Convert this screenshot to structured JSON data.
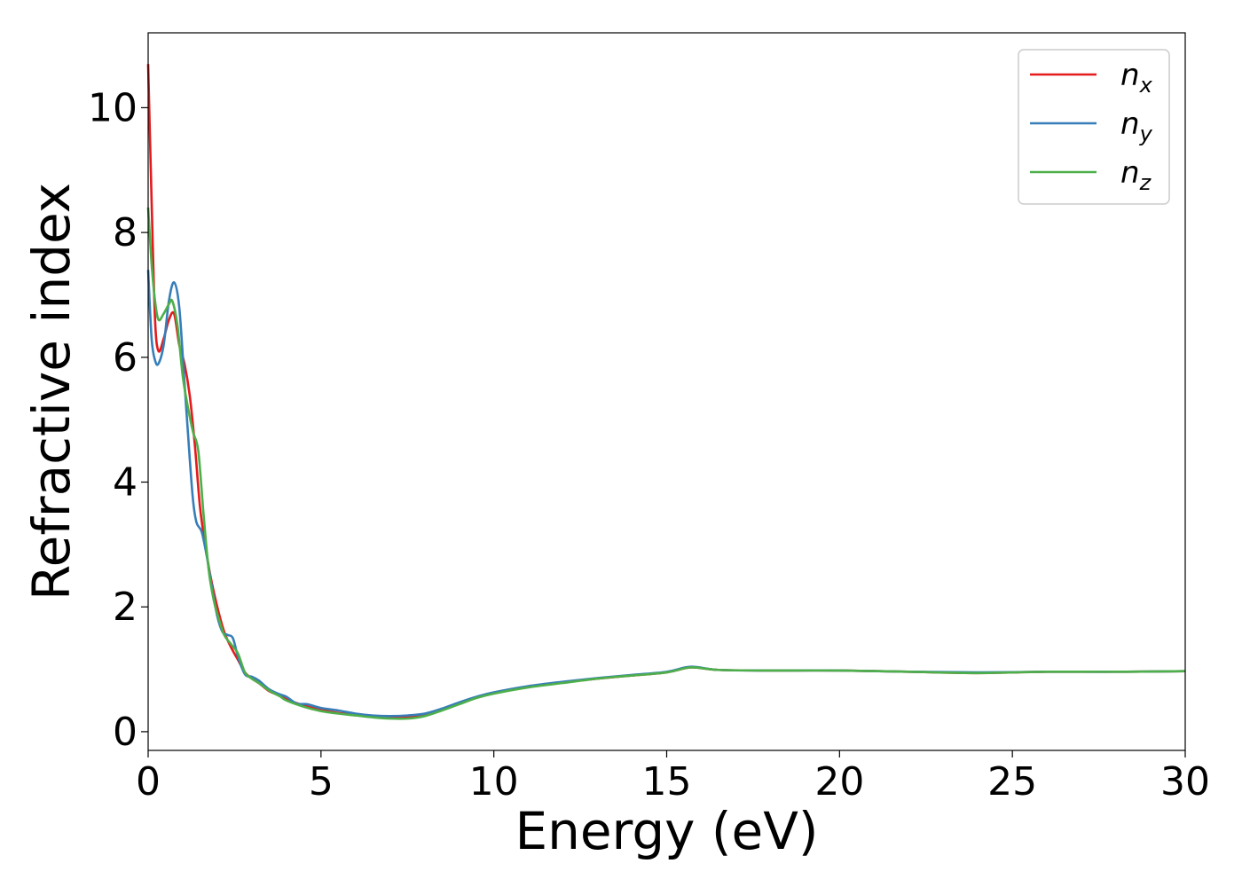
{
  "chart_data": {
    "type": "line",
    "xlabel": "Energy (eV)",
    "ylabel": "Refractive index",
    "xlim": [
      0,
      30
    ],
    "ylim": [
      -0.3,
      11.2
    ],
    "xticks": [
      0,
      5,
      10,
      15,
      20,
      25,
      30
    ],
    "yticks": [
      0,
      2,
      4,
      6,
      8,
      10
    ],
    "grid": false,
    "legend_position": "top-right",
    "series": [
      {
        "name": "n",
        "subscript": "x",
        "color": "#e41a1c",
        "points": [
          [
            0,
            10.7
          ],
          [
            0.1,
            8.5
          ],
          [
            0.2,
            6.6
          ],
          [
            0.3,
            6.1
          ],
          [
            0.45,
            6.3
          ],
          [
            0.6,
            6.6
          ],
          [
            0.75,
            6.7
          ],
          [
            0.9,
            6.2
          ],
          [
            1.05,
            5.9
          ],
          [
            1.2,
            5.4
          ],
          [
            1.35,
            4.6
          ],
          [
            1.5,
            3.6
          ],
          [
            1.65,
            3.0
          ],
          [
            1.8,
            2.5
          ],
          [
            2.0,
            2.0
          ],
          [
            2.2,
            1.6
          ],
          [
            2.4,
            1.35
          ],
          [
            2.6,
            1.15
          ],
          [
            2.8,
            0.95
          ],
          [
            3.0,
            0.85
          ],
          [
            3.2,
            0.78
          ],
          [
            3.5,
            0.65
          ],
          [
            3.8,
            0.58
          ],
          [
            4.0,
            0.52
          ],
          [
            4.5,
            0.42
          ],
          [
            5.0,
            0.35
          ],
          [
            5.5,
            0.3
          ],
          [
            6.0,
            0.27
          ],
          [
            6.5,
            0.24
          ],
          [
            7.0,
            0.23
          ],
          [
            7.5,
            0.23
          ],
          [
            8.0,
            0.27
          ],
          [
            8.5,
            0.35
          ],
          [
            9.0,
            0.45
          ],
          [
            9.5,
            0.55
          ],
          [
            10.0,
            0.62
          ],
          [
            11.0,
            0.72
          ],
          [
            12.0,
            0.79
          ],
          [
            13.0,
            0.85
          ],
          [
            14.0,
            0.9
          ],
          [
            15.0,
            0.95
          ],
          [
            15.7,
            1.03
          ],
          [
            16.5,
            0.99
          ],
          [
            18.0,
            0.98
          ],
          [
            20.0,
            0.98
          ],
          [
            22.0,
            0.96
          ],
          [
            24.0,
            0.94
          ],
          [
            26.0,
            0.96
          ],
          [
            28.0,
            0.96
          ],
          [
            30.0,
            0.97
          ]
        ]
      },
      {
        "name": "n",
        "subscript": "y",
        "color": "#377eb8",
        "points": [
          [
            0,
            7.4
          ],
          [
            0.1,
            6.3
          ],
          [
            0.2,
            5.95
          ],
          [
            0.3,
            5.9
          ],
          [
            0.45,
            6.2
          ],
          [
            0.6,
            6.9
          ],
          [
            0.75,
            7.2
          ],
          [
            0.9,
            6.8
          ],
          [
            1.05,
            5.6
          ],
          [
            1.2,
            4.4
          ],
          [
            1.3,
            3.7
          ],
          [
            1.4,
            3.35
          ],
          [
            1.55,
            3.2
          ],
          [
            1.7,
            2.8
          ],
          [
            1.85,
            2.3
          ],
          [
            2.0,
            1.85
          ],
          [
            2.15,
            1.6
          ],
          [
            2.3,
            1.55
          ],
          [
            2.45,
            1.5
          ],
          [
            2.6,
            1.2
          ],
          [
            2.8,
            0.92
          ],
          [
            3.0,
            0.88
          ],
          [
            3.2,
            0.82
          ],
          [
            3.5,
            0.68
          ],
          [
            3.8,
            0.6
          ],
          [
            4.0,
            0.56
          ],
          [
            4.3,
            0.45
          ],
          [
            4.6,
            0.44
          ],
          [
            5.0,
            0.38
          ],
          [
            5.5,
            0.34
          ],
          [
            6.0,
            0.29
          ],
          [
            6.5,
            0.26
          ],
          [
            7.0,
            0.25
          ],
          [
            7.5,
            0.26
          ],
          [
            8.0,
            0.29
          ],
          [
            8.5,
            0.37
          ],
          [
            9.0,
            0.47
          ],
          [
            9.5,
            0.56
          ],
          [
            10.0,
            0.63
          ],
          [
            11.0,
            0.73
          ],
          [
            12.0,
            0.8
          ],
          [
            13.0,
            0.86
          ],
          [
            14.0,
            0.91
          ],
          [
            15.0,
            0.96
          ],
          [
            15.7,
            1.04
          ],
          [
            16.5,
            0.99
          ],
          [
            18.0,
            0.98
          ],
          [
            20.0,
            0.98
          ],
          [
            22.0,
            0.96
          ],
          [
            24.0,
            0.95
          ],
          [
            26.0,
            0.96
          ],
          [
            28.0,
            0.96
          ],
          [
            30.0,
            0.97
          ]
        ]
      },
      {
        "name": "n",
        "subscript": "z",
        "color": "#4daf4a",
        "points": [
          [
            0,
            8.4
          ],
          [
            0.1,
            7.5
          ],
          [
            0.2,
            6.9
          ],
          [
            0.3,
            6.6
          ],
          [
            0.45,
            6.7
          ],
          [
            0.6,
            6.85
          ],
          [
            0.7,
            6.9
          ],
          [
            0.85,
            6.5
          ],
          [
            1.0,
            5.7
          ],
          [
            1.15,
            5.2
          ],
          [
            1.3,
            4.8
          ],
          [
            1.45,
            4.5
          ],
          [
            1.6,
            3.5
          ],
          [
            1.75,
            2.6
          ],
          [
            1.9,
            2.1
          ],
          [
            2.05,
            1.8
          ],
          [
            2.2,
            1.55
          ],
          [
            2.4,
            1.4
          ],
          [
            2.6,
            1.25
          ],
          [
            2.8,
            0.95
          ],
          [
            3.0,
            0.85
          ],
          [
            3.2,
            0.78
          ],
          [
            3.5,
            0.66
          ],
          [
            3.8,
            0.57
          ],
          [
            4.0,
            0.5
          ],
          [
            4.5,
            0.4
          ],
          [
            5.0,
            0.33
          ],
          [
            5.5,
            0.29
          ],
          [
            6.0,
            0.26
          ],
          [
            6.5,
            0.23
          ],
          [
            7.0,
            0.21
          ],
          [
            7.5,
            0.21
          ],
          [
            8.0,
            0.25
          ],
          [
            8.5,
            0.34
          ],
          [
            9.0,
            0.44
          ],
          [
            9.5,
            0.54
          ],
          [
            10.0,
            0.61
          ],
          [
            11.0,
            0.71
          ],
          [
            12.0,
            0.78
          ],
          [
            13.0,
            0.85
          ],
          [
            14.0,
            0.9
          ],
          [
            15.0,
            0.95
          ],
          [
            15.7,
            1.03
          ],
          [
            16.5,
            0.99
          ],
          [
            18.0,
            0.98
          ],
          [
            20.0,
            0.98
          ],
          [
            22.0,
            0.96
          ],
          [
            24.0,
            0.94
          ],
          [
            26.0,
            0.96
          ],
          [
            28.0,
            0.96
          ],
          [
            30.0,
            0.97
          ]
        ]
      }
    ]
  }
}
